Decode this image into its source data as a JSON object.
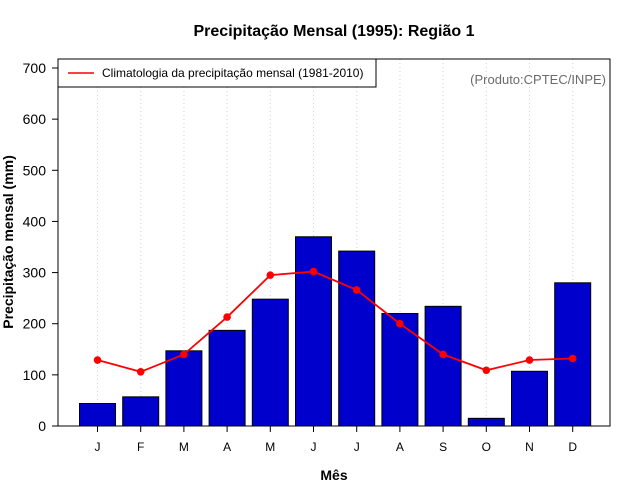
{
  "chart_data": {
    "type": "bar",
    "title": "Precipitação Mensal (1995): Região 1",
    "xlabel": "Mês",
    "ylabel": "Precipitação mensal (mm)",
    "ylim": [
      0,
      700
    ],
    "yticks": [
      0,
      100,
      200,
      300,
      400,
      500,
      600,
      700
    ],
    "categories": [
      "J",
      "F",
      "M",
      "A",
      "M",
      "J",
      "J",
      "A",
      "S",
      "O",
      "N",
      "D"
    ],
    "values": [
      44,
      57,
      147,
      187,
      248,
      370,
      342,
      220,
      234,
      15,
      107,
      280
    ],
    "bar_color": "#0000cc",
    "line_series": {
      "name": "Climatologia da precipitação mensal (1981-2010)",
      "values": [
        129,
        106,
        140,
        213,
        295,
        302,
        266,
        200,
        140,
        109,
        129,
        132
      ],
      "color": "#ff0000"
    },
    "credit": "(Produto:CPTEC/INPE)",
    "grid": "vertical-dotted",
    "legend_position": "top-left"
  }
}
